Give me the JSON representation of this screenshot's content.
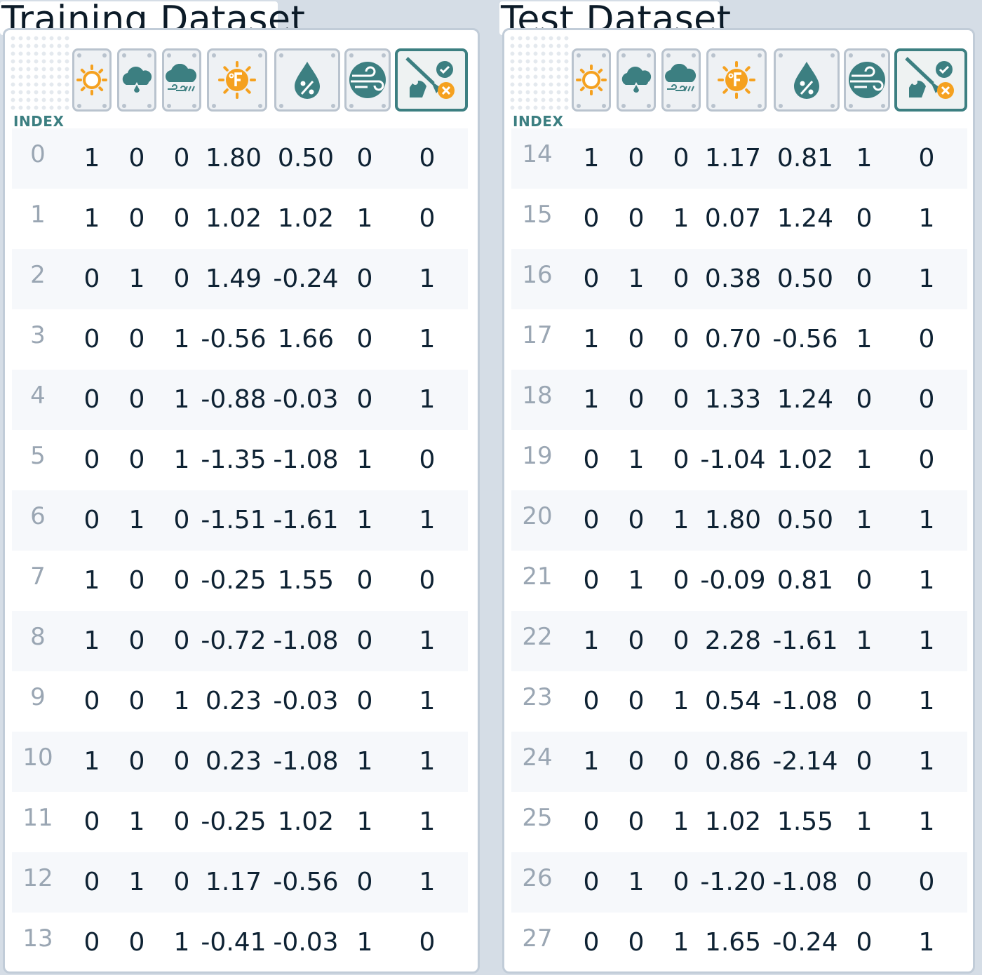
{
  "training": {
    "title": "Training Dataset",
    "index_label": "INDEX",
    "rows": [
      [
        "0",
        "1",
        "0",
        "0",
        "1.80",
        "0.50",
        "0",
        "0"
      ],
      [
        "1",
        "1",
        "0",
        "0",
        "1.02",
        "1.02",
        "1",
        "0"
      ],
      [
        "2",
        "0",
        "1",
        "0",
        "1.49",
        "-0.24",
        "0",
        "1"
      ],
      [
        "3",
        "0",
        "0",
        "1",
        "-0.56",
        "1.66",
        "0",
        "1"
      ],
      [
        "4",
        "0",
        "0",
        "1",
        "-0.88",
        "-0.03",
        "0",
        "1"
      ],
      [
        "5",
        "0",
        "0",
        "1",
        "-1.35",
        "-1.08",
        "1",
        "0"
      ],
      [
        "6",
        "0",
        "1",
        "0",
        "-1.51",
        "-1.61",
        "1",
        "1"
      ],
      [
        "7",
        "1",
        "0",
        "0",
        "-0.25",
        "1.55",
        "0",
        "0"
      ],
      [
        "8",
        "1",
        "0",
        "0",
        "-0.72",
        "-1.08",
        "0",
        "1"
      ],
      [
        "9",
        "0",
        "0",
        "1",
        "0.23",
        "-0.03",
        "0",
        "1"
      ],
      [
        "10",
        "1",
        "0",
        "0",
        "0.23",
        "-1.08",
        "1",
        "1"
      ],
      [
        "11",
        "0",
        "1",
        "0",
        "-0.25",
        "1.02",
        "1",
        "1"
      ],
      [
        "12",
        "0",
        "1",
        "0",
        "1.17",
        "-0.56",
        "0",
        "1"
      ],
      [
        "13",
        "0",
        "0",
        "1",
        "-0.41",
        "-0.03",
        "1",
        "0"
      ]
    ]
  },
  "test": {
    "title": "Test Dataset",
    "index_label": "INDEX",
    "rows": [
      [
        "14",
        "1",
        "0",
        "0",
        "1.17",
        "0.81",
        "1",
        "0"
      ],
      [
        "15",
        "0",
        "0",
        "1",
        "0.07",
        "1.24",
        "0",
        "1"
      ],
      [
        "16",
        "0",
        "1",
        "0",
        "0.38",
        "0.50",
        "0",
        "1"
      ],
      [
        "17",
        "1",
        "0",
        "0",
        "0.70",
        "-0.56",
        "1",
        "0"
      ],
      [
        "18",
        "1",
        "0",
        "0",
        "1.33",
        "1.24",
        "0",
        "0"
      ],
      [
        "19",
        "0",
        "1",
        "0",
        "-1.04",
        "1.02",
        "1",
        "0"
      ],
      [
        "20",
        "0",
        "0",
        "1",
        "1.80",
        "0.50",
        "1",
        "1"
      ],
      [
        "21",
        "0",
        "1",
        "0",
        "-0.09",
        "0.81",
        "0",
        "1"
      ],
      [
        "22",
        "1",
        "0",
        "0",
        "2.28",
        "-1.61",
        "1",
        "1"
      ],
      [
        "23",
        "0",
        "0",
        "1",
        "0.54",
        "-1.08",
        "0",
        "1"
      ],
      [
        "24",
        "1",
        "0",
        "0",
        "0.86",
        "-2.14",
        "0",
        "1"
      ],
      [
        "25",
        "0",
        "0",
        "1",
        "1.02",
        "1.55",
        "1",
        "1"
      ],
      [
        "26",
        "0",
        "1",
        "0",
        "-1.20",
        "-1.08",
        "0",
        "0"
      ],
      [
        "27",
        "0",
        "0",
        "1",
        "1.65",
        "-0.24",
        "0",
        "1"
      ]
    ]
  },
  "icons": [
    "sunny-icon",
    "overcast-icon",
    "rainy-icon",
    "temperature-icon",
    "humidity-icon",
    "wind-icon",
    "play-golf-icon"
  ],
  "colors": {
    "orange": "#f5a11f",
    "teal": "#3c7f81",
    "text": "#0e2233",
    "index": "#9aa6b3",
    "border": "#c1ccd8"
  }
}
